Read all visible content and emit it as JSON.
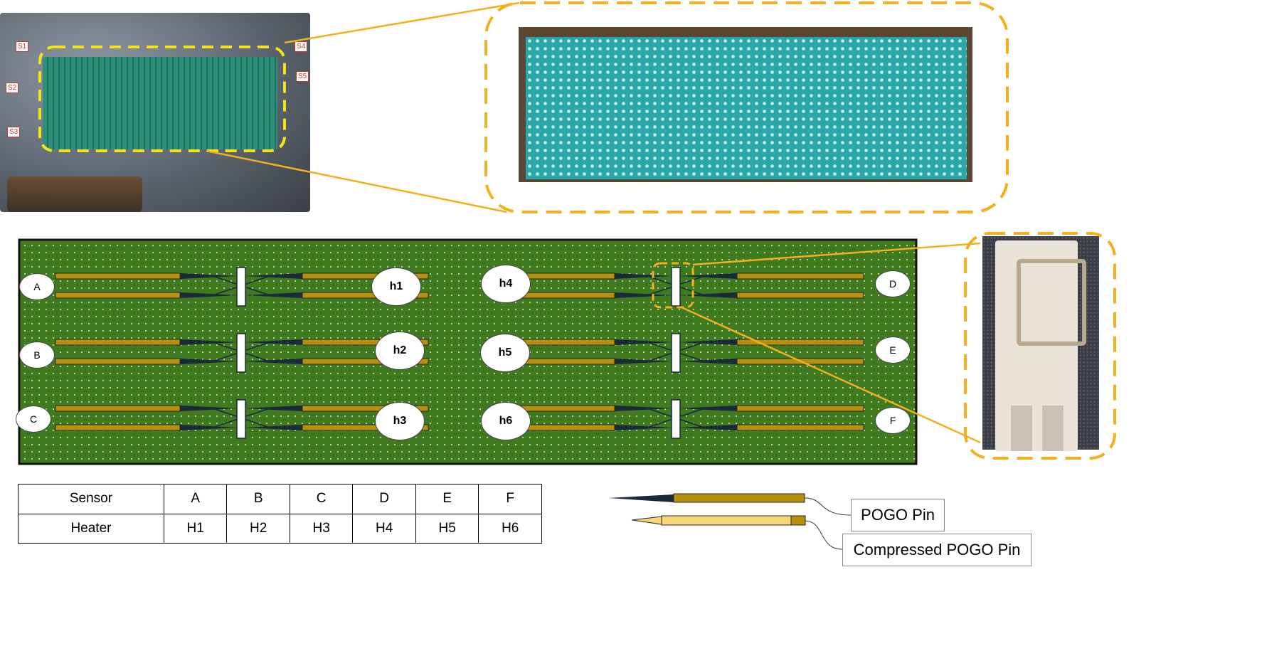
{
  "photos": {
    "enclosure_labels": [
      "S1",
      "S4",
      "S2",
      "S5",
      "S3"
    ]
  },
  "sensors": [
    {
      "label": "A",
      "heater": "h1"
    },
    {
      "label": "B",
      "heater": "h2"
    },
    {
      "label": "C",
      "heater": "h3"
    },
    {
      "label": "D",
      "heater": "h4"
    },
    {
      "label": "E",
      "heater": "h5"
    },
    {
      "label": "F",
      "heater": "h6"
    }
  ],
  "table": {
    "row_headers": [
      "Sensor",
      "Heater"
    ],
    "sensor_values": [
      "A",
      "B",
      "C",
      "D",
      "E",
      "F"
    ],
    "heater_values": [
      "H1",
      "H2",
      "H3",
      "H4",
      "H5",
      "H6"
    ]
  },
  "legend": {
    "pogo_pin": "POGO Pin",
    "compressed_pogo_pin": "Compressed POGO Pin"
  },
  "colors": {
    "board_green": "#3f7a1f",
    "pin_gold": "#b8900a",
    "pin_compressed": "#f8d676",
    "callout_orange": "#f2b01e",
    "highlight_yellow": "#f6e21a"
  }
}
